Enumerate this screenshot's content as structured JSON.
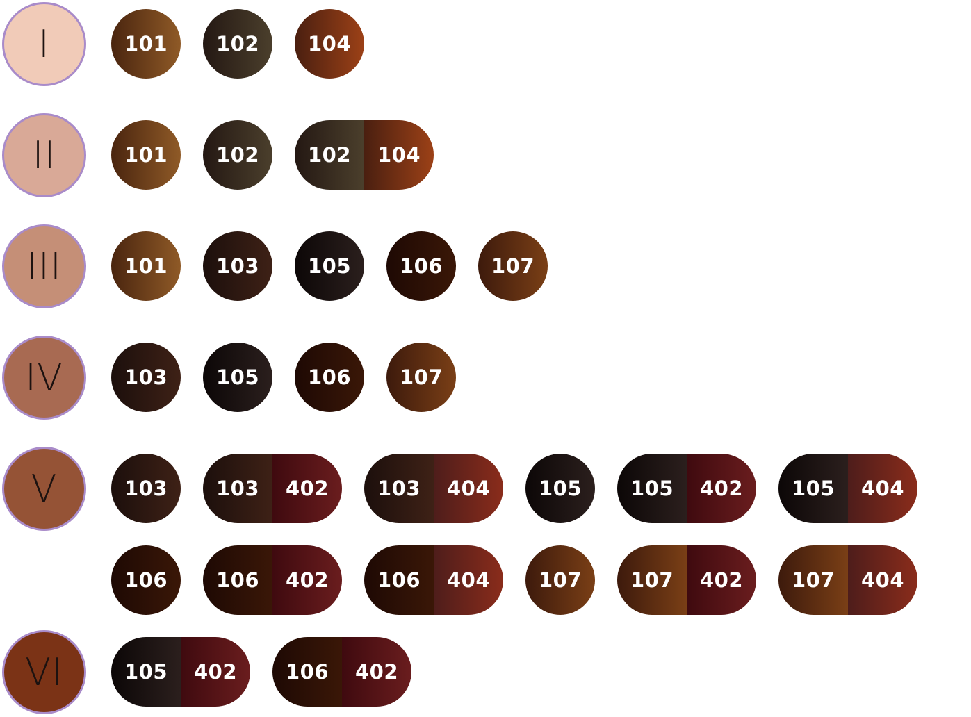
{
  "colors": {
    "101": [
      "#4a250f",
      "#8f5a27"
    ],
    "102": [
      "#241813",
      "#4b3f2c"
    ],
    "103": [
      "#1c0f0c",
      "#3e2116"
    ],
    "104": [
      "#4a1f10",
      "#9c4117"
    ],
    "105": [
      "#0c0707",
      "#2b1f1d"
    ],
    "106": [
      "#1e0904",
      "#3a1707"
    ],
    "107": [
      "#3d1a0c",
      "#7a3f16"
    ],
    "402": [
      "#3f0a0f",
      "#6a1d1e"
    ],
    "404": [
      "#4e1d1b",
      "#8a2c1b"
    ],
    "phototype_border": "#a98bc9"
  },
  "rows": [
    {
      "phototype": "I",
      "skin": "#f1cbb8",
      "chips": [
        [
          "101"
        ],
        [
          "102"
        ],
        [
          "104"
        ]
      ]
    },
    {
      "phototype": "II",
      "skin": "#d9a997",
      "chips": [
        [
          "101"
        ],
        [
          "102"
        ],
        [
          "102",
          "104"
        ]
      ]
    },
    {
      "phototype": "III",
      "skin": "#c58f77",
      "chips": [
        [
          "101"
        ],
        [
          "103"
        ],
        [
          "105"
        ],
        [
          "106"
        ],
        [
          "107"
        ]
      ]
    },
    {
      "phototype": "IV",
      "skin": "#a86a52",
      "chips": [
        [
          "103"
        ],
        [
          "105"
        ],
        [
          "106"
        ],
        [
          "107"
        ]
      ]
    },
    {
      "phototype": "V",
      "skin": "#955336",
      "chips": [
        [
          "103"
        ],
        [
          "103",
          "402"
        ],
        [
          "103",
          "404"
        ],
        [
          "105"
        ],
        [
          "105",
          "402"
        ],
        [
          "105",
          "404"
        ],
        [
          "106"
        ],
        [
          "106",
          "402"
        ],
        [
          "106",
          "404"
        ],
        [
          "107"
        ],
        [
          "107",
          "402"
        ],
        [
          "107",
          "404"
        ]
      ]
    },
    {
      "phototype": "VI",
      "skin": "#7b3316",
      "chips": [
        [
          "105",
          "402"
        ],
        [
          "106",
          "402"
        ]
      ]
    }
  ]
}
